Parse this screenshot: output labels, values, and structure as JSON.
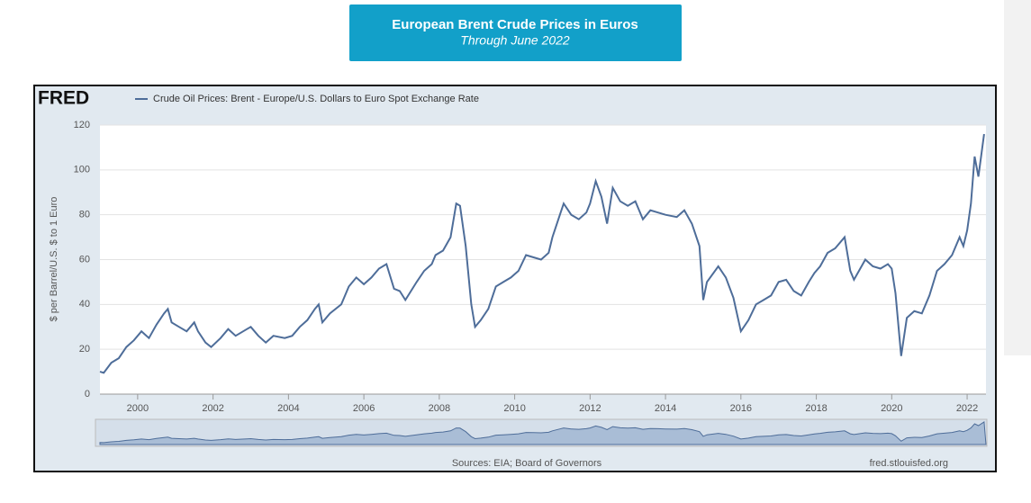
{
  "chart_data": {
    "type": "line",
    "title": "European Brent Crude Prices in Euros",
    "subtitle": "Through June 2022",
    "brand": "FRED",
    "y_label": "$ per Barrel/U.S. $ to 1 Euro",
    "source": "Sources: EIA; Board of Governors",
    "site": "fred.stlouisfed.org",
    "x": [
      1999.0,
      1999.1,
      1999.3,
      1999.5,
      1999.7,
      1999.9,
      2000.1,
      2000.3,
      2000.5,
      2000.7,
      2000.8,
      2000.9,
      2001.1,
      2001.3,
      2001.5,
      2001.6,
      2001.8,
      2001.95,
      2002.2,
      2002.4,
      2002.6,
      2002.9,
      2003.0,
      2003.2,
      2003.4,
      2003.6,
      2003.9,
      2004.1,
      2004.3,
      2004.5,
      2004.7,
      2004.8,
      2004.9,
      2005.1,
      2005.4,
      2005.6,
      2005.8,
      2006.0,
      2006.2,
      2006.4,
      2006.6,
      2006.8,
      2006.95,
      2007.1,
      2007.4,
      2007.6,
      2007.8,
      2007.9,
      2008.1,
      2008.3,
      2008.45,
      2008.55,
      2008.7,
      2008.85,
      2008.95,
      2009.1,
      2009.3,
      2009.5,
      2009.7,
      2009.9,
      2010.1,
      2010.3,
      2010.5,
      2010.7,
      2010.9,
      2011.0,
      2011.2,
      2011.3,
      2011.5,
      2011.7,
      2011.9,
      2012.0,
      2012.15,
      2012.3,
      2012.45,
      2012.6,
      2012.8,
      2013.0,
      2013.2,
      2013.4,
      2013.6,
      2013.8,
      2014.0,
      2014.3,
      2014.5,
      2014.7,
      2014.9,
      2015.0,
      2015.1,
      2015.4,
      2015.6,
      2015.8,
      2016.0,
      2016.2,
      2016.4,
      2016.6,
      2016.8,
      2017.0,
      2017.2,
      2017.4,
      2017.6,
      2017.8,
      2017.95,
      2018.1,
      2018.3,
      2018.5,
      2018.75,
      2018.9,
      2019.0,
      2019.3,
      2019.5,
      2019.7,
      2019.9,
      2020.0,
      2020.1,
      2020.25,
      2020.4,
      2020.6,
      2020.8,
      2021.0,
      2021.2,
      2021.4,
      2021.6,
      2021.8,
      2021.9,
      2022.0,
      2022.1,
      2022.2,
      2022.3,
      2022.45
    ],
    "series": [
      {
        "name": "Crude Oil Prices: Brent - Europe/U.S. Dollars to Euro Spot Exchange Rate",
        "color": "#4e6d99",
        "values": [
          10,
          9.5,
          14,
          16,
          21,
          24,
          28,
          25,
          31,
          36,
          38,
          32,
          30,
          28,
          32,
          28,
          23,
          21,
          25,
          29,
          26,
          29,
          30,
          26,
          23,
          26,
          25,
          26,
          30,
          33,
          38,
          40,
          32,
          36,
          40,
          48,
          52,
          49,
          52,
          56,
          58,
          47,
          46,
          42,
          50,
          55,
          58,
          62,
          64,
          70,
          85,
          84,
          66,
          40,
          30,
          33,
          38,
          48,
          50,
          52,
          55,
          62,
          61,
          60,
          63,
          70,
          80,
          85,
          80,
          78,
          81,
          85,
          95,
          88,
          76,
          92,
          86,
          84,
          86,
          78,
          82,
          81,
          80,
          79,
          82,
          76,
          66,
          42,
          50,
          57,
          52,
          43,
          28,
          33,
          40,
          42,
          44,
          50,
          51,
          46,
          44,
          50,
          54,
          57,
          63,
          65,
          70,
          55,
          51,
          60,
          57,
          56,
          58,
          56,
          45,
          17,
          34,
          37,
          36,
          44,
          55,
          58,
          62,
          70,
          66,
          73,
          85,
          106,
          97,
          116
        ]
      }
    ],
    "xlim": [
      1999,
      2022.5
    ],
    "xticks": [
      2000,
      2002,
      2004,
      2006,
      2008,
      2010,
      2012,
      2014,
      2016,
      2018,
      2020,
      2022
    ],
    "ylim": [
      0,
      120
    ],
    "yticks": [
      0,
      20,
      40,
      60,
      80,
      100,
      120
    ],
    "grid": true
  }
}
